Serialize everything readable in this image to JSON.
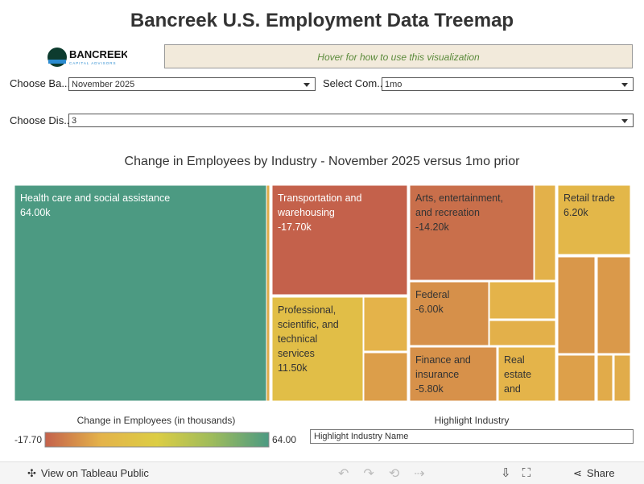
{
  "header": {
    "title": "Bancreek U.S. Employment Data Treemap",
    "logo_name": "BANCREEK",
    "logo_tagline": "CAPITAL ADVISORS",
    "hover_hint": "Hover for how to use this visualization"
  },
  "filters": [
    {
      "label": "Choose Ba...",
      "value": "November 2025"
    },
    {
      "label": "Select Com...",
      "value": "1mo"
    },
    {
      "label": "Choose Dis...",
      "value": "3"
    }
  ],
  "chart_data": {
    "type": "treemap",
    "title": "Change in Employees by Industry - November 2025 versus 1mo prior",
    "categories": [
      "Health care and social assistance",
      null,
      "Transportation and warehousing",
      "Professional, scientific, and technical services",
      null,
      null,
      "Arts, entertainment, and recreation",
      null,
      "Federal",
      null,
      null,
      "Finance and insurance",
      "Real estate and",
      "Retail trade",
      null,
      null,
      null,
      null,
      null
    ],
    "values": [
      64.0,
      0.8,
      -17.7,
      11.5,
      2.8,
      -2.5,
      -14.2,
      2.3,
      -6.0,
      2.9,
      1.9,
      -5.8,
      3.6,
      6.2,
      -4.2,
      -3.8,
      -2.0,
      0.8,
      0.9
    ],
    "value_labels": [
      "64.00k",
      null,
      "-17.70k",
      "11.50k",
      null,
      null,
      "-14.20k",
      null,
      "-6.00k",
      null,
      null,
      "-5.80k",
      null,
      "6.20k",
      null,
      null,
      null,
      null,
      null
    ],
    "colors": [
      "#c4614b",
      "#e4b34a",
      "#dccd44",
      "#9dbb5c",
      "#4c9a82"
    ],
    "legend": {
      "title": "Change in Employees (in thousands)",
      "ticks": [
        {
          "value": -17.7,
          "label": "-17.70"
        },
        {
          "value": 64.0,
          "label": "64.00"
        }
      ]
    }
  },
  "highlight": {
    "label": "Highlight Industry",
    "placeholder": "Highlight Industry Name"
  },
  "toolbar": {
    "view": "View on Tableau Public",
    "share": "Share"
  }
}
